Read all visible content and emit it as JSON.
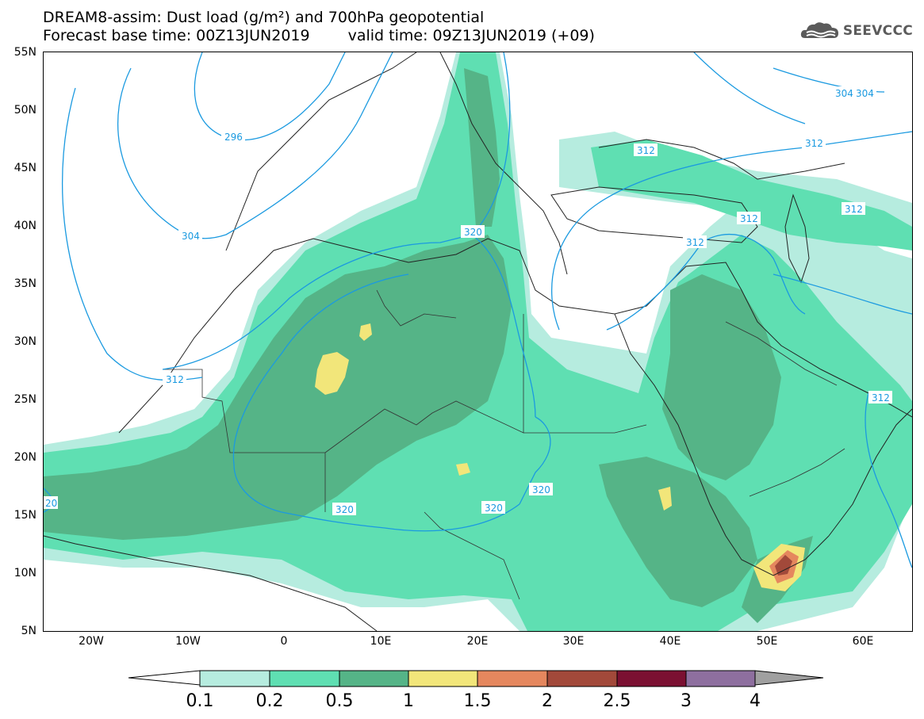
{
  "header": {
    "title_line1": "DREAM8-assim: Dust load (g/m²) and 700hPa geopotential",
    "base_time": "Forecast base time: 00Z13JUN2019",
    "valid_time": "valid time: 09Z13JUN2019 (+09)",
    "logo_text": "SEEVCCC",
    "logo_icon": "cloud-icon"
  },
  "map": {
    "lon_range": [
      -25,
      65
    ],
    "lat_range": [
      5,
      55
    ],
    "lat_labels": [
      "55N",
      "50N",
      "45N",
      "40N",
      "35N",
      "30N",
      "25N",
      "20N",
      "15N",
      "10N",
      "5N"
    ],
    "lon_labels": [
      "20W",
      "10W",
      "0",
      "10E",
      "20E",
      "30E",
      "40E",
      "50E",
      "60E"
    ],
    "contour_labels": [
      "296",
      "304",
      "312",
      "312",
      "320",
      "312",
      "312",
      "312",
      "312",
      "320",
      "320",
      "320",
      "312",
      "304",
      "304",
      "20"
    ],
    "colors": {
      "contour": "#1b9ae0",
      "coast": "#222222"
    }
  },
  "colorbar": {
    "levels": [
      "0.1",
      "0.2",
      "0.5",
      "1",
      "1.5",
      "2",
      "2.5",
      "3",
      "4"
    ],
    "colors": [
      "#ffffff",
      "#b6ecdf",
      "#5fdfb2",
      "#55b487",
      "#f2e67a",
      "#e5875e",
      "#a2493a",
      "#7b1032",
      "#8e6f9f",
      "#a0a0a0"
    ]
  }
}
